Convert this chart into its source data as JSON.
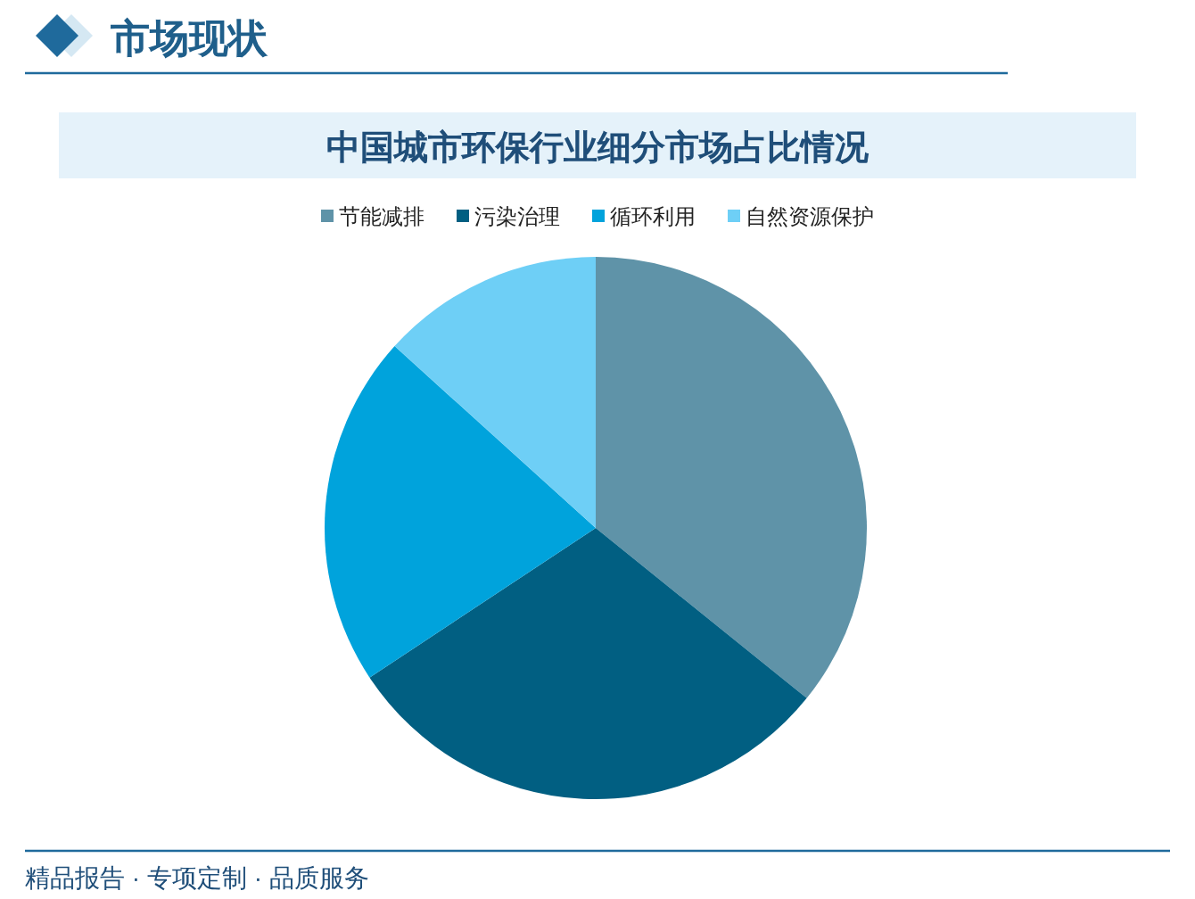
{
  "chart_data": {
    "type": "pie",
    "title": "中国城市环保行业细分市场占比情况",
    "categories": [
      "节能减排",
      "污染治理",
      "循环利用",
      "自然资源保护"
    ],
    "values": [
      35.8,
      29.9,
      21.0,
      13.3
    ],
    "colors": [
      "#5f93a8",
      "#015f82",
      "#00a3dc",
      "#6ecff6"
    ],
    "legend": "top",
    "annotations": [
      "市场现状",
      "精品报告 · 专项定制 · 品质服务"
    ]
  }
}
